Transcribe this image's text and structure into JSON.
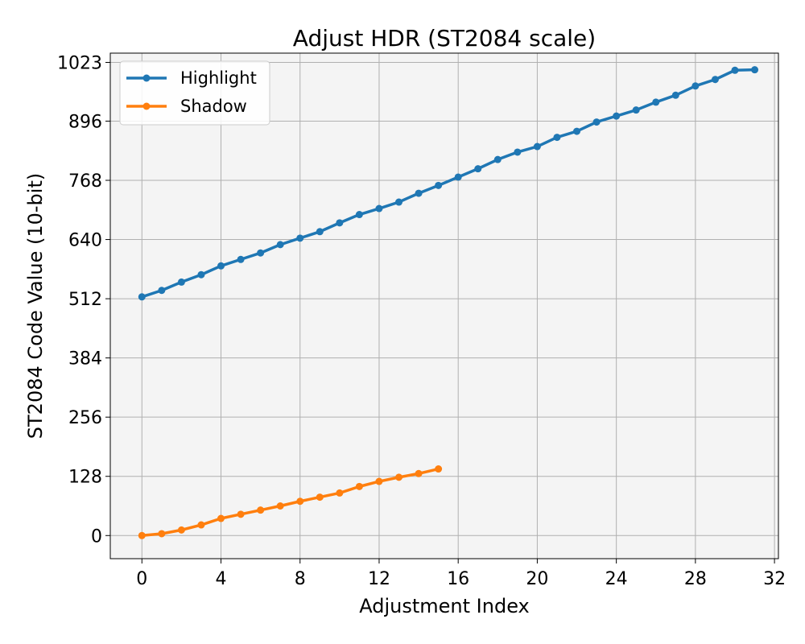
{
  "chart_data": {
    "type": "line",
    "title": "Adjust HDR (ST2084 scale)",
    "xlabel": "Adjustment Index",
    "ylabel": "ST2084 Code Value (10-bit)",
    "xlim": [
      -1.6,
      32.2
    ],
    "ylim": [
      -50,
      1043
    ],
    "xticks": [
      0,
      4,
      8,
      12,
      16,
      20,
      24,
      28,
      32
    ],
    "yticks": [
      0,
      128,
      256,
      384,
      512,
      640,
      768,
      896,
      1023
    ],
    "grid": true,
    "legend_position": "top-left",
    "series": [
      {
        "name": "Highlight",
        "color": "#1f77b4",
        "x": [
          0,
          1,
          2,
          3,
          4,
          5,
          6,
          7,
          8,
          9,
          10,
          11,
          12,
          13,
          14,
          15,
          16,
          17,
          18,
          19,
          20,
          21,
          22,
          23,
          24,
          25,
          26,
          27,
          28,
          29,
          30,
          31
        ],
        "y": [
          516,
          530,
          548,
          564,
          583,
          597,
          611,
          629,
          643,
          657,
          676,
          694,
          707,
          721,
          740,
          757,
          775,
          793,
          813,
          829,
          841,
          861,
          874,
          894,
          907,
          920,
          937,
          952,
          972,
          986,
          1006,
          1007
        ]
      },
      {
        "name": "Shadow",
        "color": "#ff7f0e",
        "x": [
          0,
          1,
          2,
          3,
          4,
          5,
          6,
          7,
          8,
          9,
          10,
          11,
          12,
          13,
          14,
          15
        ],
        "y": [
          0,
          4,
          12,
          23,
          37,
          46,
          55,
          64,
          74,
          83,
          92,
          106,
          117,
          126,
          134,
          144
        ]
      }
    ]
  }
}
